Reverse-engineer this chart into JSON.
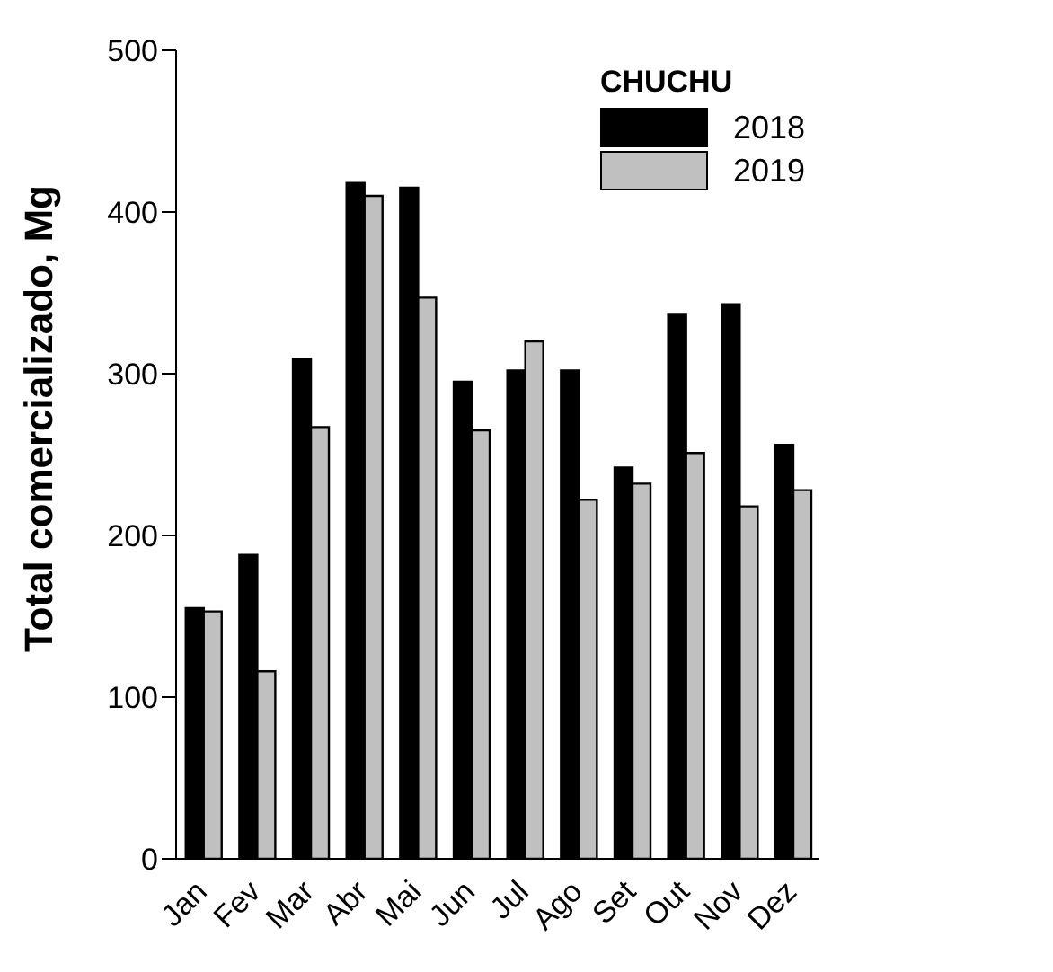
{
  "chart_data": {
    "type": "bar",
    "ylabel": "Total comercializado, Mg",
    "legend_title": "CHUCHU",
    "categories": [
      "Jan",
      "Fev",
      "Mar",
      "Abr",
      "Mai",
      "Jun",
      "Jul",
      "Ago",
      "Set",
      "Out",
      "Nov",
      "Dez"
    ],
    "series": [
      {
        "name": "2018",
        "color": "#000000",
        "values": [
          155,
          188,
          309,
          418,
          415,
          295,
          302,
          302,
          242,
          337,
          343,
          256
        ]
      },
      {
        "name": "2019",
        "color": "#c0c0c0",
        "values": [
          153,
          116,
          267,
          410,
          347,
          265,
          320,
          222,
          232,
          251,
          218,
          228
        ]
      }
    ],
    "ylim": [
      0,
      500
    ],
    "yticks": [
      0,
      100,
      200,
      300,
      400,
      500
    ],
    "grid": false,
    "legend": "top right"
  }
}
